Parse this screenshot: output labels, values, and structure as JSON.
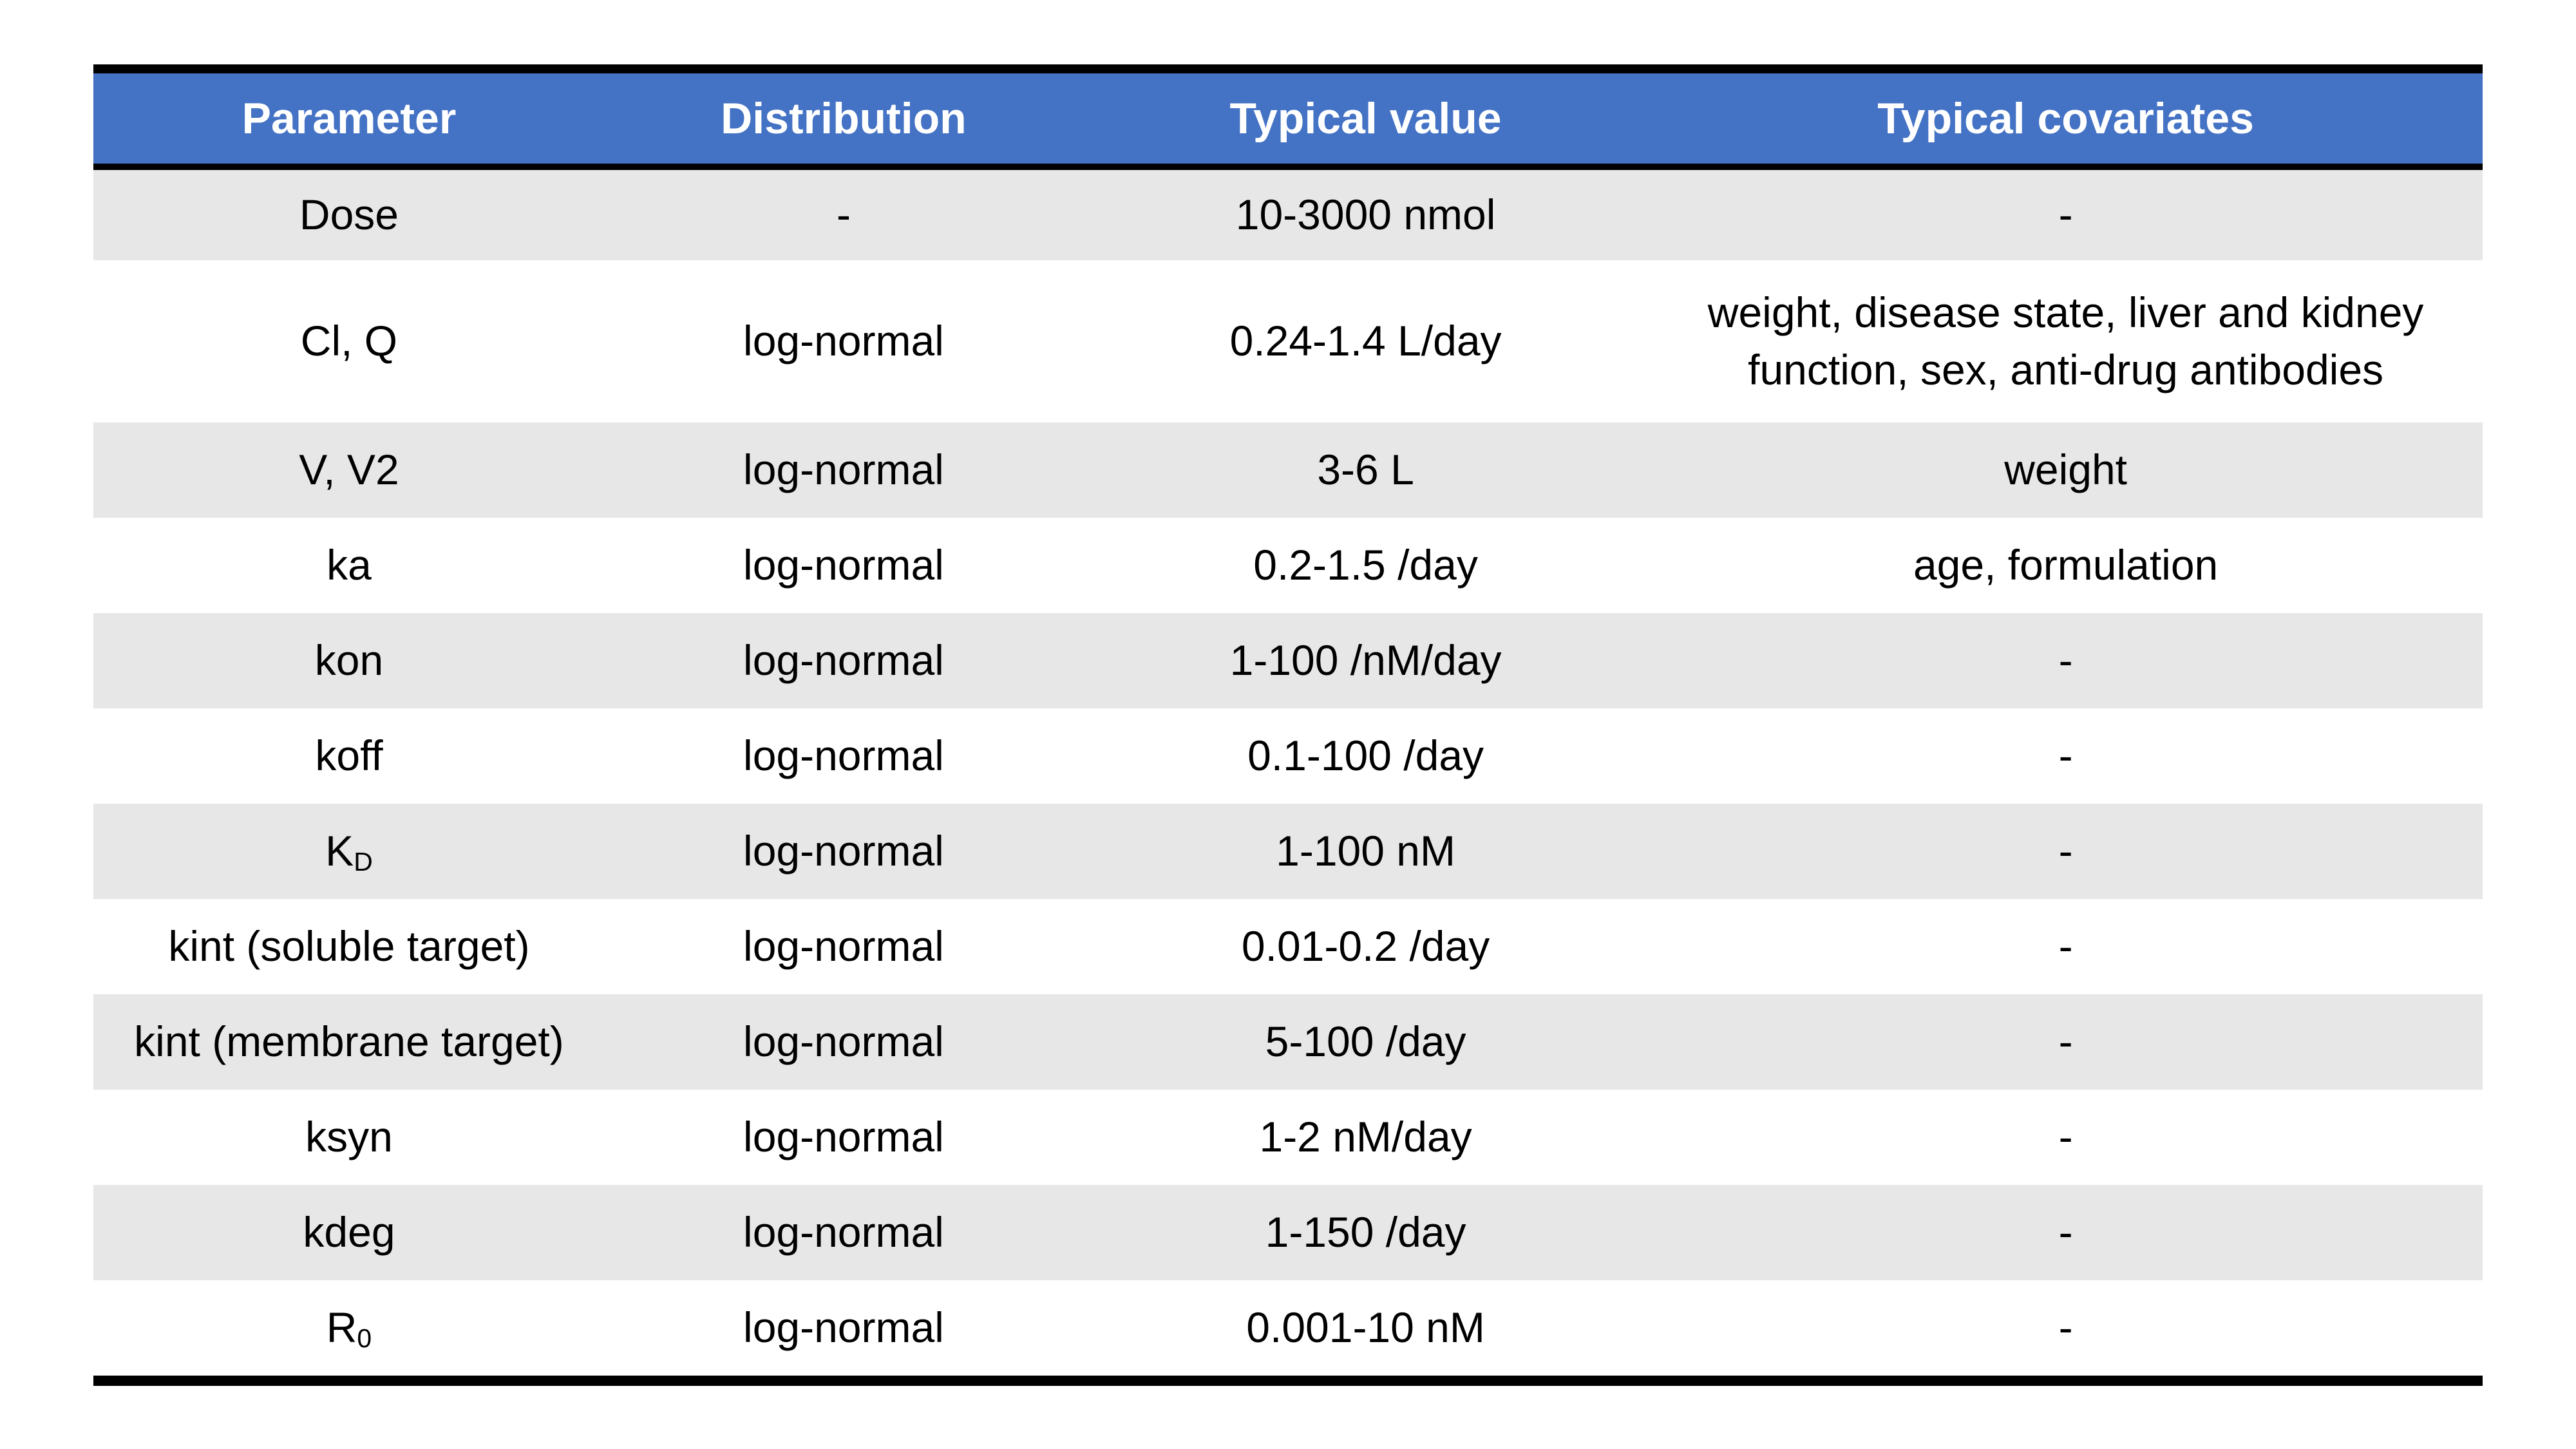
{
  "colors": {
    "header_bg": "#4472c4",
    "stripe_bg": "#e7e7e7",
    "border": "#000000",
    "header_text": "#ffffff",
    "body_text": "#000000"
  },
  "table": {
    "columns": [
      {
        "label": "Parameter"
      },
      {
        "label": "Distribution"
      },
      {
        "label": "Typical value"
      },
      {
        "label": "Typical covariates"
      }
    ],
    "rows": [
      {
        "parameter": "Dose",
        "parameter_sub": "",
        "distribution": "-",
        "typical_value": "10-3000 nmol",
        "typical_covariates": "-"
      },
      {
        "parameter": "Cl, Q",
        "parameter_sub": "",
        "distribution": "log-normal",
        "typical_value": "0.24-1.4 L/day",
        "typical_covariates": "weight, disease state, liver and kidney function, sex, anti-drug antibodies"
      },
      {
        "parameter": "V, V2",
        "parameter_sub": "",
        "distribution": "log-normal",
        "typical_value": "3-6 L",
        "typical_covariates": "weight"
      },
      {
        "parameter": "ka",
        "parameter_sub": "",
        "distribution": "log-normal",
        "typical_value": "0.2-1.5 /day",
        "typical_covariates": "age, formulation"
      },
      {
        "parameter": "kon",
        "parameter_sub": "",
        "distribution": "log-normal",
        "typical_value": "1-100 /nM/day",
        "typical_covariates": "-"
      },
      {
        "parameter": "koff",
        "parameter_sub": "",
        "distribution": "log-normal",
        "typical_value": "0.1-100 /day",
        "typical_covariates": "-"
      },
      {
        "parameter": "K",
        "parameter_sub": "D",
        "distribution": "log-normal",
        "typical_value": "1-100 nM",
        "typical_covariates": "-"
      },
      {
        "parameter": "kint (soluble target)",
        "parameter_sub": "",
        "distribution": "log-normal",
        "typical_value": "0.01-0.2 /day",
        "typical_covariates": "-"
      },
      {
        "parameter": "kint (membrane target)",
        "parameter_sub": "",
        "distribution": "log-normal",
        "typical_value": "5-100 /day",
        "typical_covariates": "-"
      },
      {
        "parameter": "ksyn",
        "parameter_sub": "",
        "distribution": "log-normal",
        "typical_value": "1-2 nM/day",
        "typical_covariates": "-"
      },
      {
        "parameter": "kdeg",
        "parameter_sub": "",
        "distribution": "log-normal",
        "typical_value": "1-150 /day",
        "typical_covariates": "-"
      },
      {
        "parameter": "R",
        "parameter_sub": "0",
        "distribution": "log-normal",
        "typical_value": "0.001-10 nM",
        "typical_covariates": "-"
      }
    ]
  }
}
